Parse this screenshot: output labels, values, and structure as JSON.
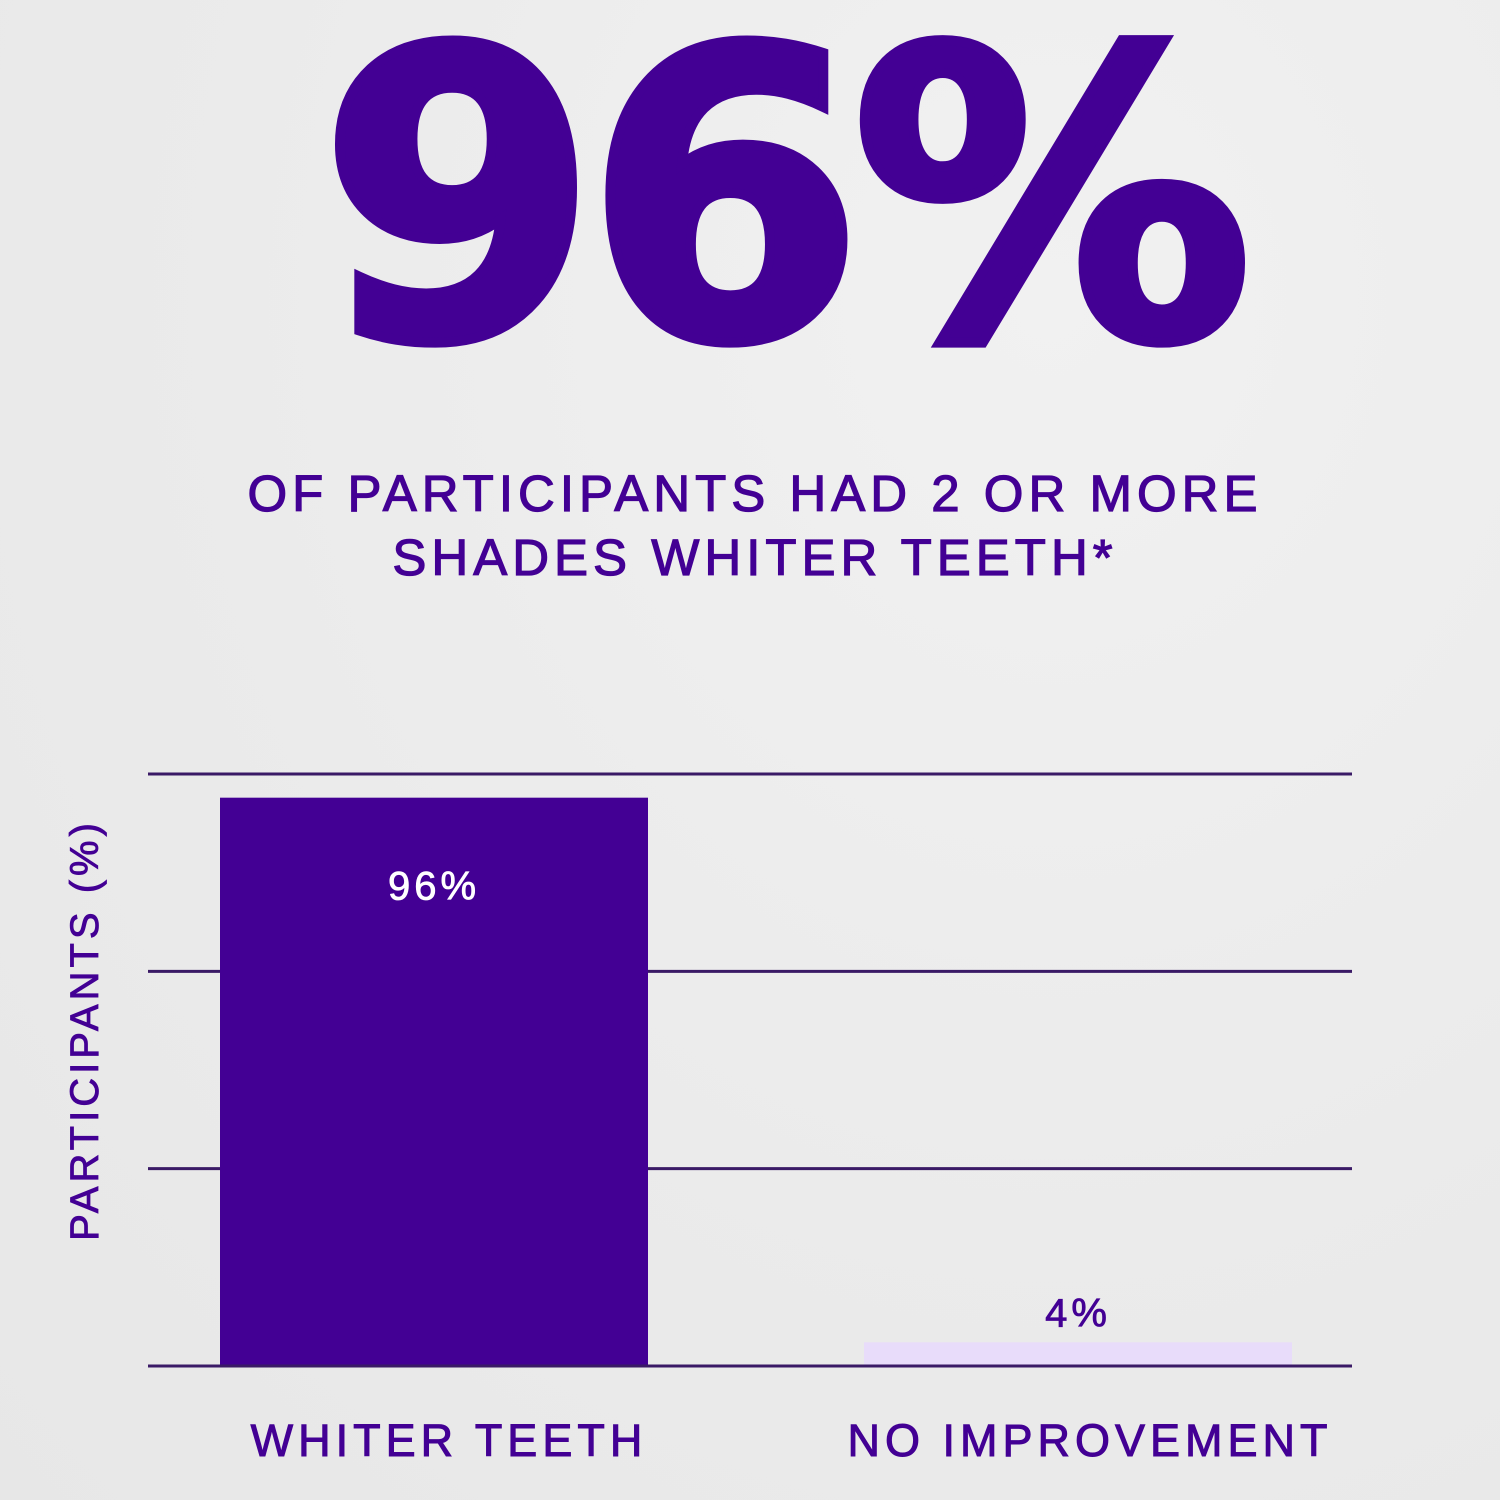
{
  "headline": {
    "big_stat": "96%",
    "subtitle_line1": "OF PARTICIPANTS HAD 2 OR MORE",
    "subtitle_line2": "SHADES WHITER TEETH*"
  },
  "colors": {
    "primary": "#430094",
    "light_bar": "#e8dcfa",
    "gridline": "#3a1a66",
    "background": "#ececec",
    "label_on_dark": "#ffffff"
  },
  "chart_data": {
    "type": "bar",
    "title": "",
    "xlabel": "",
    "ylabel": "PARTICIPANTS (%)",
    "ylim": [
      0,
      100
    ],
    "grid": true,
    "categories": [
      "WHITER TEETH",
      "NO IMPROVEMENT"
    ],
    "values": [
      96,
      4
    ],
    "data_labels": [
      "96%",
      "4%"
    ],
    "bar_colors": [
      "#430094",
      "#e8dcfa"
    ]
  }
}
